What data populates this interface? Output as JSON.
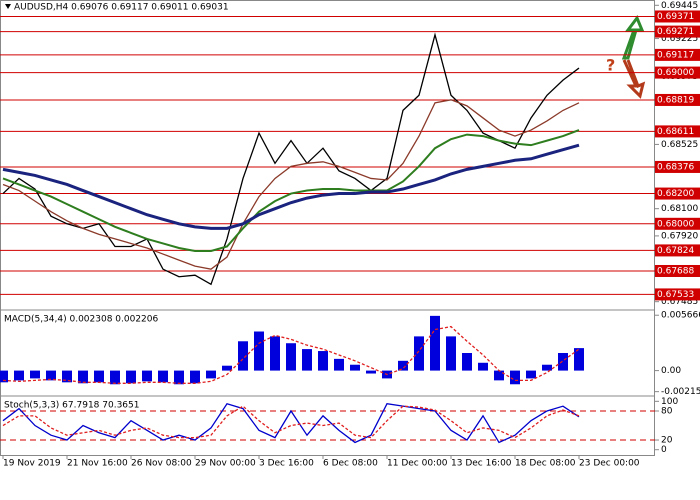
{
  "chart_data": [
    {
      "type": "line",
      "title": "AUDUSD,H4  0.69076 0.69117 0.69011 0.69031",
      "annotation": "?",
      "ylim": [
        0.6743,
        0.6948
      ],
      "yticks": [
        0.69445,
        0.69225,
        0.68975,
        0.68525,
        {
          "value": 0.681,
          "label": "0.68100"
        },
        {
          "value": 0.6792,
          "label": "0.67920"
        },
        0.67485
      ],
      "levels": [
        0.69371,
        0.69271,
        0.69117,
        {
          "value": 0.69,
          "label": "0.69000"
        },
        0.68819,
        0.68611,
        0.68376,
        {
          "value": 0.682,
          "label": "0.68200"
        },
        {
          "value": 0.68,
          "label": "0.68000"
        },
        0.67824,
        0.67688,
        0.67533
      ],
      "series": [
        {
          "color": "#000000",
          "values": [
            0.682,
            0.683,
            0.6823,
            0.6805,
            0.68,
            0.6797,
            0.68,
            0.6785,
            0.6785,
            0.679,
            0.677,
            0.6765,
            0.6766,
            0.676,
            0.679,
            0.683,
            0.686,
            0.684,
            0.6855,
            0.684,
            0.685,
            0.6835,
            0.683,
            0.6822,
            0.683,
            0.6875,
            0.6885,
            0.6925,
            0.6885,
            0.6875,
            0.686,
            0.6855,
            0.685,
            0.687,
            0.6885,
            0.6895,
            0.6903
          ]
        },
        {
          "color": "#8b3a2a",
          "values": [
            0.6826,
            0.6822,
            0.6815,
            0.6808,
            0.6802,
            0.6797,
            0.6793,
            0.679,
            0.6787,
            0.6784,
            0.678,
            0.6776,
            0.6772,
            0.677,
            0.6778,
            0.68,
            0.6818,
            0.683,
            0.6838,
            0.684,
            0.6841,
            0.6838,
            0.6834,
            0.683,
            0.6829,
            0.684,
            0.6858,
            0.688,
            0.6882,
            0.6878,
            0.687,
            0.6862,
            0.6858,
            0.6862,
            0.6868,
            0.6875,
            0.688
          ]
        },
        {
          "color": "#2e7d1e",
          "values": [
            0.683,
            0.6826,
            0.6822,
            0.6818,
            0.6813,
            0.6808,
            0.6803,
            0.6798,
            0.6794,
            0.679,
            0.6787,
            0.6784,
            0.6782,
            0.6782,
            0.6785,
            0.6797,
            0.6808,
            0.6815,
            0.682,
            0.6822,
            0.6823,
            0.6823,
            0.6822,
            0.6822,
            0.6822,
            0.6828,
            0.6838,
            0.685,
            0.6856,
            0.6859,
            0.6858,
            0.6855,
            0.6853,
            0.6852,
            0.6855,
            0.6858,
            0.6862
          ]
        },
        {
          "color": "#1a237e",
          "values": [
            0.6836,
            0.6834,
            0.6832,
            0.6829,
            0.6826,
            0.6822,
            0.6818,
            0.6814,
            0.681,
            0.6806,
            0.6803,
            0.68,
            0.6798,
            0.6797,
            0.6797,
            0.68,
            0.6806,
            0.681,
            0.6814,
            0.6817,
            0.6819,
            0.682,
            0.682,
            0.6821,
            0.6821,
            0.6823,
            0.6826,
            0.6829,
            0.6833,
            0.6836,
            0.6838,
            0.684,
            0.6842,
            0.6843,
            0.6846,
            0.6849,
            0.6852
          ]
        }
      ]
    },
    {
      "type": "bar",
      "title": "MACD(5,34,4) 0.002308 0.002206",
      "ylim": [
        -0.0026,
        0.0062
      ],
      "yticks": [
        0.005666,
        {
          "value": 0,
          "label": "0.00"
        },
        -0.002154
      ],
      "series": [
        {
          "color": "#0000dd",
          "values": [
            -0.0012,
            -0.001,
            -0.0008,
            -0.001,
            -0.0012,
            -0.0013,
            -0.0012,
            -0.0014,
            -0.0013,
            -0.0011,
            -0.0012,
            -0.0014,
            -0.0013,
            -0.0008,
            0.0005,
            0.003,
            0.004,
            0.0035,
            0.0028,
            0.0022,
            0.002,
            0.0012,
            0.0006,
            -0.0003,
            -0.0008,
            0.001,
            0.0035,
            0.0056,
            0.0035,
            0.0018,
            0.0008,
            -0.001,
            -0.0014,
            -0.0008,
            0.0006,
            0.0018,
            0.0023
          ]
        },
        {
          "color": "#e02020",
          "dashed": true,
          "values": [
            -0.001,
            -0.0011,
            -0.001,
            -0.0009,
            -0.001,
            -0.0012,
            -0.0012,
            -0.0013,
            -0.0013,
            -0.0012,
            -0.0012,
            -0.0013,
            -0.0013,
            -0.0011,
            -0.0004,
            0.0012,
            0.0028,
            0.0036,
            0.0032,
            0.0026,
            0.0022,
            0.0016,
            0.001,
            0.0003,
            -0.0004,
            0.0002,
            0.002,
            0.0042,
            0.0045,
            0.003,
            0.0016,
            0,
            -0.001,
            -0.001,
            -0.0002,
            0.001,
            0.0022
          ]
        }
      ]
    },
    {
      "type": "line",
      "title": "Stoch(5,3,3) 67.7918 70.3651",
      "ylim": [
        -13,
        111
      ],
      "yticks": [
        100,
        80,
        20,
        0
      ],
      "levels": [
        80,
        20
      ],
      "categories": [
        "19 Nov 2019",
        null,
        null,
        null,
        "21 Nov 16:00",
        null,
        null,
        null,
        "26 Nov 08:00",
        null,
        null,
        null,
        "29 Nov 00:00",
        null,
        null,
        null,
        "3 Dec 16:00",
        null,
        null,
        null,
        "6 Dec 08:00",
        null,
        null,
        null,
        "11 Dec 00:00",
        null,
        null,
        null,
        "13 Dec 16:00",
        null,
        null,
        null,
        "18 Dec 08:00",
        null,
        null,
        null,
        "23 Dec 00:00"
      ],
      "series": [
        {
          "color": "#0000cc",
          "values": [
            60,
            85,
            50,
            30,
            20,
            50,
            35,
            25,
            60,
            40,
            20,
            30,
            20,
            45,
            95,
            85,
            40,
            25,
            80,
            30,
            70,
            40,
            15,
            30,
            95,
            90,
            85,
            80,
            40,
            20,
            70,
            15,
            30,
            60,
            80,
            90,
            68
          ]
        },
        {
          "color": "#e02020",
          "dashed": true,
          "values": [
            50,
            70,
            70,
            45,
            30,
            35,
            40,
            30,
            40,
            45,
            30,
            25,
            25,
            30,
            70,
            90,
            60,
            35,
            50,
            55,
            50,
            55,
            30,
            25,
            60,
            90,
            88,
            82,
            60,
            35,
            45,
            40,
            25,
            45,
            70,
            82,
            70
          ]
        }
      ]
    }
  ]
}
